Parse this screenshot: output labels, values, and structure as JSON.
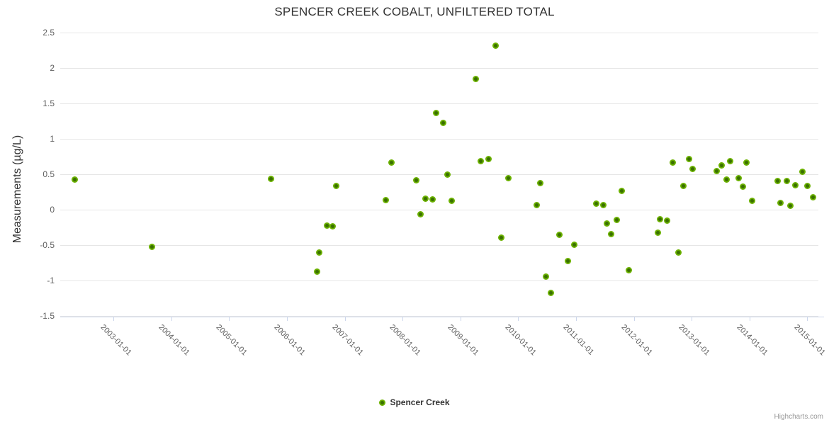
{
  "credits": "Highcharts.com",
  "colors": {
    "point_fill": "#6cb200",
    "point_core": "#3a7000",
    "grid_line": "#e6e6e6",
    "axis_line": "#ccd6eb",
    "title_text": "#333333",
    "axis_label": "#606060",
    "legend_text": "#333333",
    "credits_text": "#999999"
  },
  "chart_data": {
    "type": "scatter",
    "title": "SPENCER CREEK COBALT, UNFILTERED TOTAL",
    "xlabel": "",
    "ylabel": "Measurements (µg/L)",
    "grid": true,
    "legend_position": "bottom-center",
    "y_axis": {
      "min": -1.5,
      "max": 2.5,
      "tick_labels": [
        "2.5",
        "2",
        "1.5",
        "1",
        "0.5",
        "0",
        "-0.5",
        "-1",
        "-1.5"
      ]
    },
    "x_axis": {
      "min_year": 2002.08,
      "max_year": 2015.19,
      "tick_labels": [
        "2003-01-01",
        "2004-01-01",
        "2005-01-01",
        "2006-01-01",
        "2007-01-01",
        "2008-01-01",
        "2009-01-01",
        "2010-01-01",
        "2011-01-01",
        "2012-01-01",
        "2013-01-01",
        "2014-01-01",
        "2015-01-01"
      ]
    },
    "series": [
      {
        "name": "Spencer Creek",
        "points": [
          [
            2002.33,
            0.43
          ],
          [
            2003.67,
            -0.52
          ],
          [
            2005.72,
            0.44
          ],
          [
            2006.52,
            -0.87
          ],
          [
            2006.56,
            -0.6
          ],
          [
            2006.69,
            -0.22
          ],
          [
            2006.79,
            -0.23
          ],
          [
            2006.85,
            0.34
          ],
          [
            2007.71,
            0.14
          ],
          [
            2007.81,
            0.67
          ],
          [
            2008.24,
            0.42
          ],
          [
            2008.31,
            -0.06
          ],
          [
            2008.4,
            0.16
          ],
          [
            2008.52,
            0.15
          ],
          [
            2008.58,
            1.37
          ],
          [
            2008.7,
            1.23
          ],
          [
            2008.77,
            0.5
          ],
          [
            2008.85,
            0.13
          ],
          [
            2009.27,
            1.85
          ],
          [
            2009.35,
            0.69
          ],
          [
            2009.49,
            0.72
          ],
          [
            2009.61,
            2.32
          ],
          [
            2009.71,
            -0.39
          ],
          [
            2009.83,
            0.45
          ],
          [
            2010.32,
            0.07
          ],
          [
            2010.38,
            0.38
          ],
          [
            2010.48,
            -0.94
          ],
          [
            2010.56,
            -1.17
          ],
          [
            2010.71,
            -0.35
          ],
          [
            2010.86,
            -0.72
          ],
          [
            2010.97,
            -0.49
          ],
          [
            2011.35,
            0.09
          ],
          [
            2011.47,
            0.07
          ],
          [
            2011.53,
            -0.19
          ],
          [
            2011.61,
            -0.34
          ],
          [
            2011.7,
            -0.14
          ],
          [
            2011.79,
            0.27
          ],
          [
            2011.91,
            -0.85
          ],
          [
            2012.41,
            -0.32
          ],
          [
            2012.45,
            -0.13
          ],
          [
            2012.57,
            -0.15
          ],
          [
            2012.67,
            0.67
          ],
          [
            2012.77,
            -0.6
          ],
          [
            2012.85,
            0.34
          ],
          [
            2012.95,
            0.72
          ],
          [
            2013.02,
            0.58
          ],
          [
            2013.43,
            0.55
          ],
          [
            2013.52,
            0.63
          ],
          [
            2013.6,
            0.43
          ],
          [
            2013.67,
            0.69
          ],
          [
            2013.81,
            0.45
          ],
          [
            2013.88,
            0.33
          ],
          [
            2013.95,
            0.67
          ],
          [
            2014.04,
            0.13
          ],
          [
            2014.49,
            0.41
          ],
          [
            2014.54,
            0.1
          ],
          [
            2014.64,
            0.41
          ],
          [
            2014.71,
            0.06
          ],
          [
            2014.79,
            0.35
          ],
          [
            2014.92,
            0.54
          ],
          [
            2015.0,
            0.34
          ],
          [
            2015.1,
            0.18
          ]
        ]
      }
    ]
  }
}
